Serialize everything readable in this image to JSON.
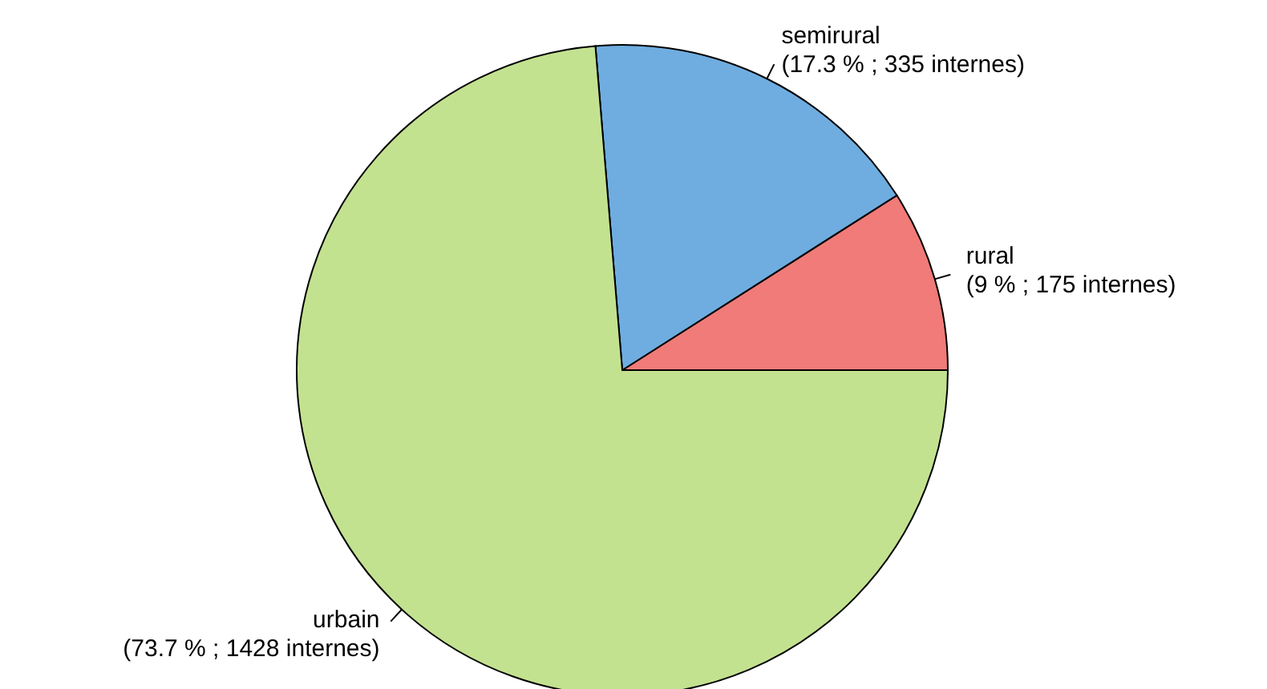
{
  "chart_data": {
    "type": "pie",
    "categories": [
      "rural",
      "semirural",
      "urbain"
    ],
    "values": [
      175,
      335,
      1428
    ],
    "value_labels": [
      "(9 % ; 175 internes)",
      "(17.3 % ; 335 internes)",
      "(73.7 % ; 1428 internes)"
    ],
    "colors": [
      "#f07b78",
      "#6fade0",
      "#c3e290"
    ]
  }
}
